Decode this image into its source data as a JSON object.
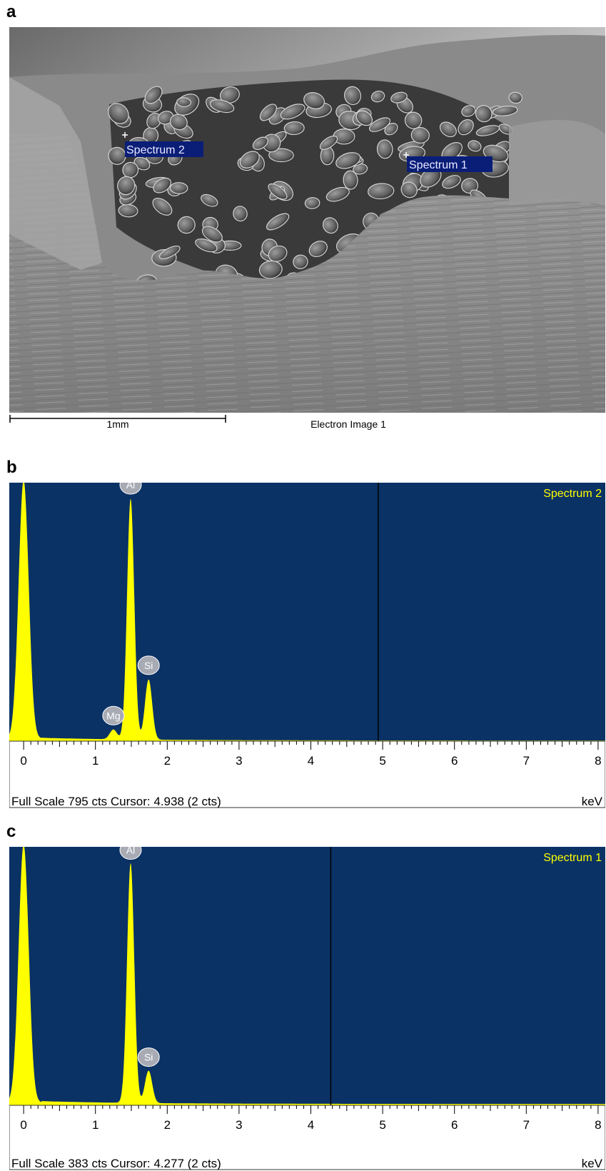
{
  "panels": {
    "a": "a",
    "b": "b",
    "c": "c"
  },
  "sem_image": {
    "labels": [
      {
        "name": "spectrum-2-marker-label",
        "text": "Spectrum 2"
      },
      {
        "name": "spectrum-1-marker-label",
        "text": "Spectrum 1"
      }
    ],
    "scale_bar_label": "1mm",
    "caption": "Electron Image 1"
  },
  "colors": {
    "plot_background": "#0a3265",
    "spectrum_fill": "#ffff00",
    "peak_label_bg": "#a8aab4",
    "spectrum_title": "#ffff00"
  },
  "chart_data": [
    {
      "type": "area",
      "title": "Spectrum 2",
      "xlabel": "keV",
      "xlim": [
        -0.2,
        8.1
      ],
      "x_ticks": [
        "0",
        "1",
        "2",
        "3",
        "4",
        "5",
        "6",
        "7",
        "8"
      ],
      "full_scale_cts": 795,
      "status_line": "Full Scale 795 cts Cursor: 4.938  (2 cts)",
      "cursor_kev": 4.938,
      "cursor_cts": 2,
      "peaks": [
        {
          "element": "",
          "kev": 0.0,
          "counts": 795,
          "width": 0.07
        },
        {
          "element": "Mg",
          "kev": 1.25,
          "counts": 30,
          "width": 0.05
        },
        {
          "element": "Al",
          "kev": 1.49,
          "counts": 740,
          "width": 0.05
        },
        {
          "element": "Si",
          "kev": 1.74,
          "counts": 185,
          "width": 0.05
        }
      ],
      "background_counts": 8
    },
    {
      "type": "area",
      "title": "Spectrum 1",
      "xlabel": "keV",
      "xlim": [
        -0.2,
        8.1
      ],
      "x_ticks": [
        "0",
        "1",
        "2",
        "3",
        "4",
        "5",
        "6",
        "7",
        "8"
      ],
      "full_scale_cts": 383,
      "status_line": "Full Scale 383 cts Cursor: 4.277  (2 cts)",
      "cursor_kev": 4.277,
      "cursor_cts": 2,
      "peaks": [
        {
          "element": "",
          "kev": 0.0,
          "counts": 383,
          "width": 0.07
        },
        {
          "element": "Al",
          "kev": 1.49,
          "counts": 355,
          "width": 0.05
        },
        {
          "element": "Si",
          "kev": 1.74,
          "counts": 48,
          "width": 0.05
        }
      ],
      "background_counts": 4
    }
  ]
}
